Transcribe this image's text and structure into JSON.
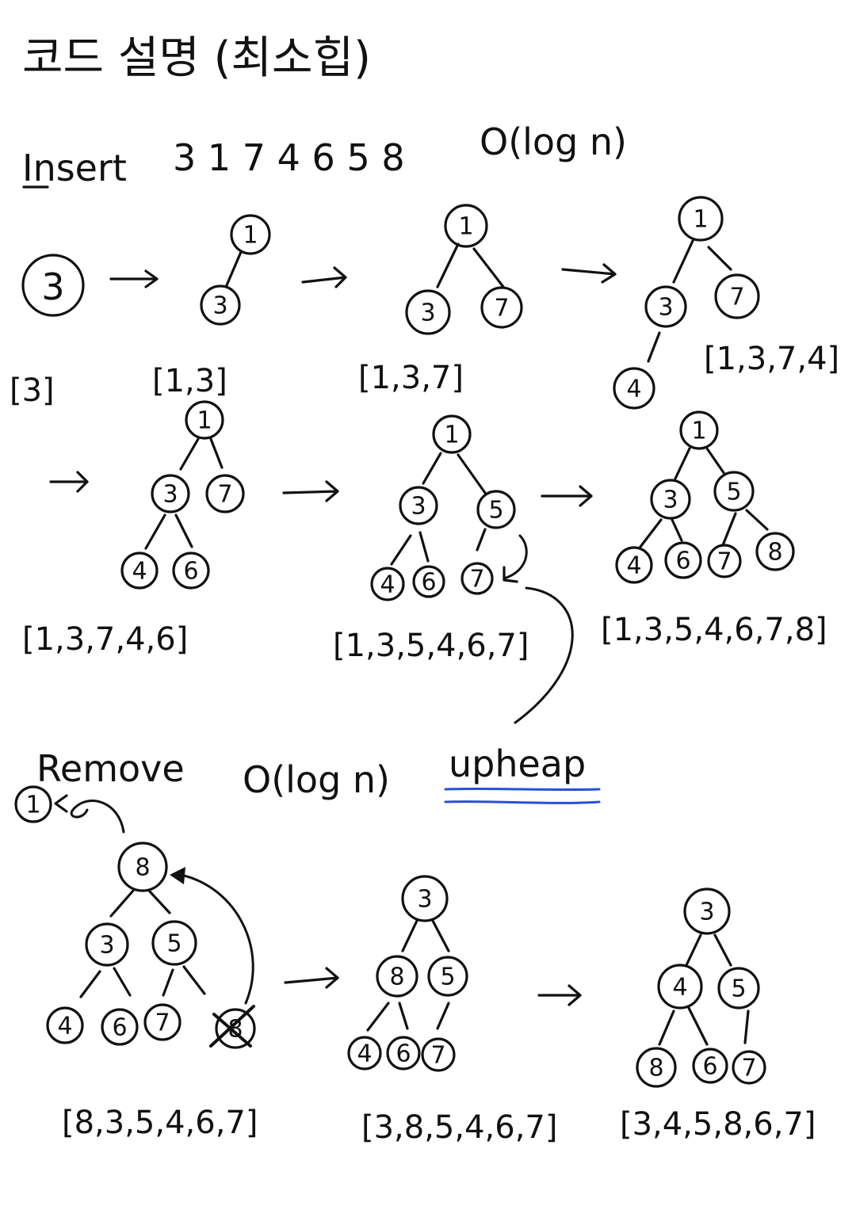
{
  "title": "코드 설명 (최소힙)",
  "insert": {
    "label": "Insert",
    "sequence": "3  1 7 4  6 5 8",
    "complexity": "O(log n)",
    "steps": [
      {
        "tree": [
          "3"
        ],
        "array": "[3]"
      },
      {
        "tree": [
          "1",
          "3"
        ],
        "array": "[1,3]"
      },
      {
        "tree": [
          "1",
          "3",
          "7"
        ],
        "array": "[1,3,7]"
      },
      {
        "tree": [
          "1",
          "3",
          "7",
          "4"
        ],
        "array": "[1,3,7,4]"
      },
      {
        "tree": [
          "1",
          "3",
          "7",
          "4",
          "6"
        ],
        "array": "[1,3,7,4,6]"
      },
      {
        "tree": [
          "1",
          "3",
          "5",
          "4",
          "6",
          "7"
        ],
        "array": "[1,3,5,4,6,7]"
      },
      {
        "tree": [
          "1",
          "3",
          "5",
          "4",
          "6",
          "7",
          "8"
        ],
        "array": "[1,3,5,4,6,7,8]"
      }
    ],
    "upheap_label": "upheap",
    "accent_color": "#2a4fd6"
  },
  "remove": {
    "label": "Remove",
    "complexity": "O(log n)",
    "removed": "1",
    "steps": [
      {
        "tree": [
          "8",
          "3",
          "5",
          "4",
          "6",
          "7",
          "8"
        ],
        "array": "[8,3,5,4,6,7]"
      },
      {
        "tree": [
          "3",
          "8",
          "5",
          "4",
          "6",
          "7"
        ],
        "array": "[3,8,5,4,6,7]"
      },
      {
        "tree": [
          "3",
          "4",
          "5",
          "8",
          "6",
          "7"
        ],
        "array": "[3,4,5,8,6,7]"
      }
    ]
  }
}
